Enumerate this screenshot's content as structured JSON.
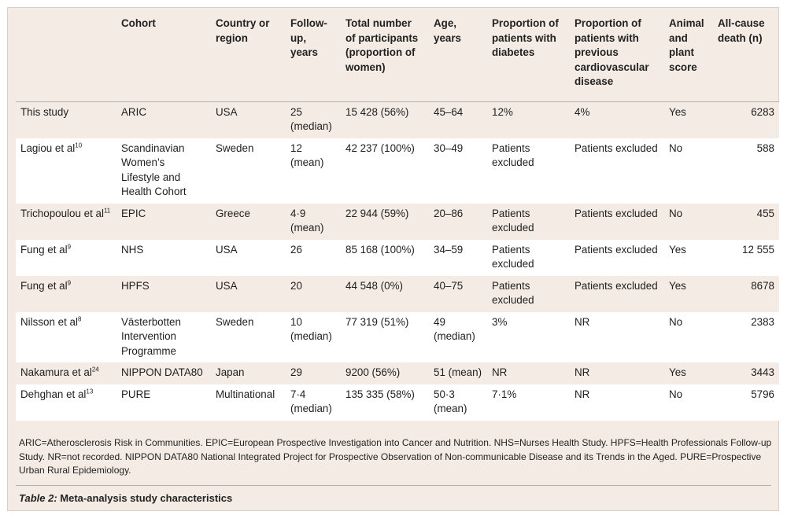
{
  "table": {
    "headers": [
      "",
      "Cohort",
      "Country or region",
      "Follow-up, years",
      "Total number of participants (proportion of women)",
      "Age, years",
      "Proportion of patients with diabetes",
      "Proportion of patients with previous cardiovascular disease",
      "Animal and plant score",
      "All-cause death (n)"
    ],
    "rows": [
      {
        "study": "This study",
        "ref": "",
        "cohort": "ARIC",
        "country": "USA",
        "followup": "25 (median)",
        "participants": "15 428 (56%)",
        "age": "45–64",
        "diabetes": "12%",
        "cvd": "4%",
        "score": "Yes",
        "deaths": "6283"
      },
      {
        "study": "Lagiou et al",
        "ref": "10",
        "cohort": "Scandinavian Women’s Lifestyle and Health Cohort",
        "country": "Sweden",
        "followup": "12 (mean)",
        "participants": "42 237 (100%)",
        "age": "30–49",
        "diabetes": "Patients excluded",
        "cvd": "Patients excluded",
        "score": "No",
        "deaths": "588"
      },
      {
        "study": "Trichopoulou et al",
        "ref": "11",
        "cohort": "EPIC",
        "country": "Greece",
        "followup": "4·9 (mean)",
        "participants": "22 944 (59%)",
        "age": "20–86",
        "diabetes": "Patients excluded",
        "cvd": "Patients excluded",
        "score": "No",
        "deaths": "455"
      },
      {
        "study": "Fung et al",
        "ref": "9",
        "cohort": "NHS",
        "country": "USA",
        "followup": "26",
        "participants": "85 168 (100%)",
        "age": "34–59",
        "diabetes": "Patients excluded",
        "cvd": "Patients excluded",
        "score": "Yes",
        "deaths": "12 555"
      },
      {
        "study": "Fung et al",
        "ref": "9",
        "cohort": "HPFS",
        "country": "USA",
        "followup": "20",
        "participants": "44 548 (0%)",
        "age": "40–75",
        "diabetes": "Patients excluded",
        "cvd": "Patients excluded",
        "score": "Yes",
        "deaths": "8678"
      },
      {
        "study": "Nilsson et al",
        "ref": "8",
        "cohort": "Västerbotten Intervention Programme",
        "country": "Sweden",
        "followup": "10 (median)",
        "participants": "77 319 (51%)",
        "age": "49 (median)",
        "diabetes": "3%",
        "cvd": "NR",
        "score": "No",
        "deaths": "2383"
      },
      {
        "study": "Nakamura et al",
        "ref": "24",
        "cohort": "NIPPON DATA80",
        "country": "Japan",
        "followup": "29",
        "participants": "9200 (56%)",
        "age": "51 (mean)",
        "diabetes": "NR",
        "cvd": "NR",
        "score": "Yes",
        "deaths": "3443"
      },
      {
        "study": "Dehghan et al",
        "ref": "13",
        "cohort": "PURE",
        "country": "Multinational",
        "followup": "7·4 (median)",
        "participants": "135 335 (58%)",
        "age": "50·3 (mean)",
        "diabetes": "7·1%",
        "cvd": "NR",
        "score": "No",
        "deaths": "5796"
      }
    ]
  },
  "footnote": "ARIC=Atherosclerosis Risk in Communities. EPIC=European Prospective Investigation into Cancer and Nutrition. NHS=Nurses Health Study. HPFS=Health Professionals Follow-up Study. NR=not recorded. NIPPON DATA80 National Integrated Project for Prospective Observation of Non-communicable Disease and its Trends in the Aged. PURE=Prospective Urban Rural Epidemiology.",
  "caption": {
    "label": "Table 2:",
    "text": "Meta-analysis study characteristics"
  }
}
